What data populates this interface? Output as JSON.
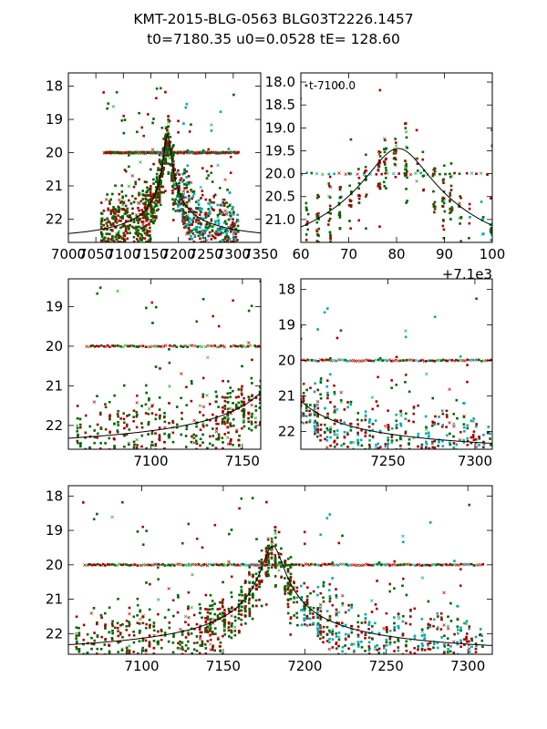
{
  "figure": {
    "title_line1": "KMT-2015-BLG-0563 BLG03T2226.1457",
    "title_line2": "t0=7180.35 u0=0.0528 tE= 128.60"
  },
  "model": {
    "t0": 7180.35,
    "u0": 0.0528,
    "tE": 128.6,
    "base_mag": 22.6,
    "peak_mag": 19.45
  },
  "colors": {
    "red": "#cc0000",
    "darkred": "#8b0000",
    "green": "#006400",
    "cyan": "#00aaaa",
    "line": "#000000"
  },
  "chart_data": [
    {
      "id": "panel-full",
      "type": "scatter",
      "xlim": [
        7000,
        7350
      ],
      "ylim": [
        22.7,
        17.6
      ],
      "xticks": [
        7000,
        7050,
        7100,
        7150,
        7200,
        7250,
        7300,
        7350
      ],
      "xtick_labels": [
        "7000",
        "7050",
        "7100",
        "7150",
        "7200",
        "7250",
        "7300",
        "7350"
      ],
      "yticks": [
        18,
        19,
        20,
        21,
        22
      ],
      "ytick_labels": [
        "18",
        "19",
        "20",
        "21",
        "22"
      ],
      "series": [
        "KMT-red",
        "KMT-green",
        "KMT-cyan",
        "model"
      ],
      "data_xrange": [
        7060,
        7310
      ]
    },
    {
      "id": "panel-peak",
      "type": "scatter",
      "xlim": [
        7160,
        7200
      ],
      "ylim": [
        21.5,
        17.8
      ],
      "xticks": [
        7160,
        7170,
        7180,
        7190,
        7200
      ],
      "xtick_labels": [
        "60",
        "70",
        "80",
        "90",
        "100"
      ],
      "yticks": [
        18.0,
        18.5,
        19.0,
        19.5,
        20.0,
        20.5,
        21.0
      ],
      "ytick_labels": [
        "18.0",
        "18.5",
        "19.0",
        "19.5",
        "20.0",
        "20.5",
        "21.0"
      ],
      "offset_text": "+7.1e3",
      "annotation": "t-7100.0",
      "series": [
        "KMT-red",
        "KMT-green",
        "KMT-cyan",
        "model"
      ]
    },
    {
      "id": "panel-left",
      "type": "scatter",
      "xlim": [
        7055,
        7160
      ],
      "ylim": [
        22.6,
        18.3
      ],
      "xticks": [
        7100,
        7150
      ],
      "xtick_labels": [
        "7100",
        "7150"
      ],
      "yticks": [
        19,
        20,
        21,
        22
      ],
      "ytick_labels": [
        "19",
        "20",
        "21",
        "22"
      ],
      "series": [
        "KMT-red",
        "KMT-green",
        "model"
      ]
    },
    {
      "id": "panel-right",
      "type": "scatter",
      "xlim": [
        7200,
        7310
      ],
      "ylim": [
        22.5,
        17.7
      ],
      "xticks": [
        7250,
        7300
      ],
      "xtick_labels": [
        "7250",
        "7300"
      ],
      "yticks": [
        18,
        19,
        20,
        21,
        22
      ],
      "ytick_labels": [
        "18",
        "19",
        "20",
        "21",
        "22"
      ],
      "series": [
        "KMT-red",
        "KMT-green",
        "KMT-cyan",
        "model"
      ]
    },
    {
      "id": "panel-bottom",
      "type": "scatter",
      "xlim": [
        7055,
        7315
      ],
      "ylim": [
        22.6,
        17.7
      ],
      "xticks": [
        7100,
        7150,
        7200,
        7250,
        7300
      ],
      "xtick_labels": [
        "7100",
        "7150",
        "7200",
        "7250",
        "7300"
      ],
      "yticks": [
        18,
        19,
        20,
        21,
        22
      ],
      "ytick_labels": [
        "18",
        "19",
        "20",
        "21",
        "22"
      ],
      "series": [
        "KMT-red",
        "KMT-green",
        "KMT-cyan",
        "model"
      ]
    }
  ]
}
